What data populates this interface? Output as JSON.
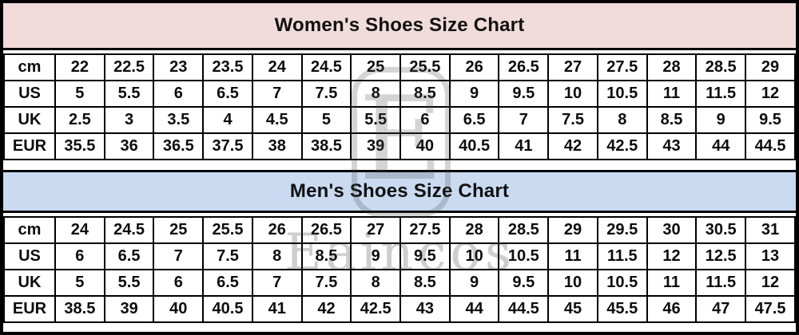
{
  "chart_data": [
    {
      "type": "table",
      "title": "Women's Shoes Size Chart",
      "header_bg": "#f1dcdb",
      "row_labels": [
        "cm",
        "US",
        "UK",
        "EUR"
      ],
      "rows": [
        {
          "label": "cm",
          "values": [
            "22",
            "22.5",
            "23",
            "23.5",
            "24",
            "24.5",
            "25",
            "25.5",
            "26",
            "26.5",
            "27",
            "27.5",
            "28",
            "28.5",
            "29"
          ]
        },
        {
          "label": "US",
          "values": [
            "5",
            "5.5",
            "6",
            "6.5",
            "7",
            "7.5",
            "8",
            "8.5",
            "9",
            "9.5",
            "10",
            "10.5",
            "11",
            "11.5",
            "12"
          ]
        },
        {
          "label": "UK",
          "values": [
            "2.5",
            "3",
            "3.5",
            "4",
            "4.5",
            "5",
            "5.5",
            "6",
            "6.5",
            "7",
            "7.5",
            "8",
            "8.5",
            "9",
            "9.5"
          ]
        },
        {
          "label": "EUR",
          "values": [
            "35.5",
            "36",
            "36.5",
            "37.5",
            "38",
            "38.5",
            "39",
            "40",
            "40.5",
            "41",
            "42",
            "42.5",
            "43",
            "44",
            "44.5"
          ]
        }
      ]
    },
    {
      "type": "table",
      "title": "Men's Shoes Size Chart",
      "header_bg": "#c9daf1",
      "row_labels": [
        "cm",
        "US",
        "UK",
        "EUR"
      ],
      "rows": [
        {
          "label": "cm",
          "values": [
            "24",
            "24.5",
            "25",
            "25.5",
            "26",
            "26.5",
            "27",
            "27.5",
            "28",
            "28.5",
            "29",
            "29.5",
            "30",
            "30.5",
            "31"
          ]
        },
        {
          "label": "US",
          "values": [
            "6",
            "6.5",
            "7",
            "7.5",
            "8",
            "8.5",
            "9",
            "9.5",
            "10",
            "10.5",
            "11",
            "11.5",
            "12",
            "12.5",
            "13"
          ]
        },
        {
          "label": "UK",
          "values": [
            "5",
            "5.5",
            "6",
            "6.5",
            "7",
            "7.5",
            "8",
            "8.5",
            "9",
            "9.5",
            "10",
            "10.5",
            "11",
            "11.5",
            "12"
          ]
        },
        {
          "label": "EUR",
          "values": [
            "38.5",
            "39",
            "40",
            "40.5",
            "41",
            "42",
            "42.5",
            "43",
            "44",
            "44.5",
            "45",
            "45.5",
            "46",
            "47",
            "47.5"
          ]
        }
      ]
    }
  ],
  "watermark": {
    "monogram": "E",
    "brand": "Eaincos"
  },
  "colors": {
    "women_header": "#f1dcdb",
    "men_header": "#c9daf1",
    "border": "#000000",
    "background": "#ffffff"
  }
}
